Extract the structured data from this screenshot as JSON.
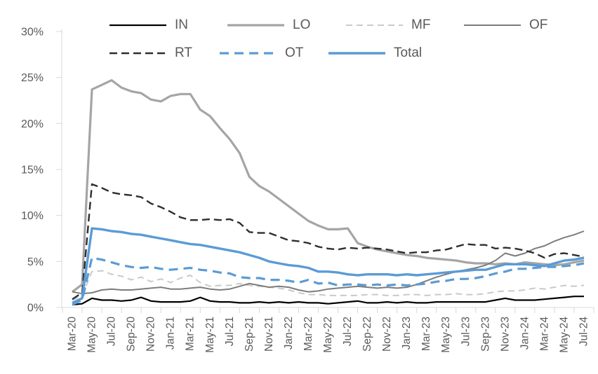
{
  "chart_data": {
    "type": "line",
    "title": "",
    "xlabel": "",
    "ylabel": "",
    "x_categories": [
      "Mar-20",
      "Apr-20",
      "May-20",
      "Jun-20",
      "Jul-20",
      "Aug-20",
      "Sep-20",
      "Oct-20",
      "Nov-20",
      "Dec-20",
      "Jan-21",
      "Feb-21",
      "Mar-21",
      "Apr-21",
      "May-21",
      "Jun-21",
      "Jul-21",
      "Aug-21",
      "Sep-21",
      "Oct-21",
      "Nov-21",
      "Dec-21",
      "Jan-22",
      "Feb-22",
      "Mar-22",
      "Apr-22",
      "May-22",
      "Jun-22",
      "Jul-22",
      "Aug-22",
      "Sep-22",
      "Oct-22",
      "Nov-22",
      "Dec-22",
      "Jan-23",
      "Feb-23",
      "Mar-23",
      "Apr-23",
      "May-23",
      "Jun-23",
      "Jul-23",
      "Aug-23",
      "Sep-23",
      "Oct-23",
      "Nov-23",
      "Dec-23",
      "Jan-24",
      "Feb-24",
      "Mar-24",
      "Apr-24",
      "May-24",
      "Jun-24",
      "Jul-24"
    ],
    "x_labels_shown_every_n_months": 2,
    "y_axis": {
      "min": 0,
      "max": 30,
      "step": 5,
      "format": "percent",
      "tick_labels": [
        "0%",
        "5%",
        "10%",
        "15%",
        "20%",
        "25%",
        "30%"
      ]
    },
    "grid": "off",
    "legend_position": "top",
    "legend_rows": [
      [
        "IN",
        "LO",
        "MF",
        "OF"
      ],
      [
        "RT",
        "OT",
        "Total"
      ]
    ],
    "colors": {
      "axis_line": "#D9D9D9",
      "tick_text": "#595959",
      "legend_text": "#595959",
      "background": "#FFFFFF",
      "accent_blue": "#5B9BD5"
    },
    "series": [
      {
        "name": "IN",
        "color": "#000000",
        "style": "solid",
        "width": 2.2,
        "dash": "",
        "values": [
          0.3,
          0.4,
          1.0,
          0.8,
          0.8,
          0.7,
          0.8,
          1.1,
          0.7,
          0.6,
          0.6,
          0.6,
          0.7,
          1.1,
          0.7,
          0.6,
          0.6,
          0.5,
          0.5,
          0.6,
          0.5,
          0.6,
          0.5,
          0.6,
          0.5,
          0.5,
          0.4,
          0.5,
          0.6,
          0.7,
          0.5,
          0.5,
          0.6,
          0.5,
          0.6,
          0.5,
          0.5,
          0.6,
          0.6,
          0.6,
          0.6,
          0.6,
          0.6,
          0.8,
          1.0,
          0.8,
          0.8,
          0.8,
          0.9,
          1.0,
          1.1,
          1.2,
          1.2
        ]
      },
      {
        "name": "LO",
        "color": "#A5A5A5",
        "style": "solid",
        "width": 3.2,
        "dash": "",
        "values": [
          1.7,
          2.5,
          23.7,
          24.2,
          24.7,
          23.9,
          23.5,
          23.3,
          22.6,
          22.4,
          23.0,
          23.2,
          23.2,
          21.5,
          20.8,
          19.5,
          18.3,
          16.8,
          14.2,
          13.2,
          12.6,
          11.8,
          11.0,
          10.2,
          9.4,
          8.9,
          8.5,
          8.5,
          8.6,
          7.0,
          6.6,
          6.3,
          6.1,
          5.9,
          5.7,
          5.6,
          5.4,
          5.3,
          5.2,
          5.1,
          4.9,
          4.8,
          4.8,
          4.7,
          4.8,
          4.7,
          4.9,
          4.8,
          4.7,
          4.6,
          4.7,
          4.9,
          5.1
        ]
      },
      {
        "name": "MF",
        "color": "#C9C9C9",
        "style": "dashed",
        "width": 2.0,
        "dash": "9 6",
        "values": [
          0.8,
          1.3,
          3.9,
          4.0,
          3.6,
          3.4,
          3.0,
          3.3,
          2.8,
          3.1,
          2.7,
          3.2,
          3.5,
          2.7,
          2.3,
          2.4,
          2.4,
          2.6,
          2.4,
          2.3,
          2.2,
          2.1,
          1.9,
          1.6,
          1.4,
          1.4,
          1.3,
          1.3,
          1.3,
          1.3,
          1.4,
          1.4,
          1.3,
          1.3,
          1.4,
          1.4,
          1.3,
          1.4,
          1.4,
          1.5,
          1.4,
          1.4,
          1.5,
          1.7,
          1.8,
          1.8,
          1.9,
          2.1,
          2.0,
          2.2,
          2.4,
          2.3,
          2.4
        ]
      },
      {
        "name": "OF",
        "color": "#7C7C7C",
        "style": "solid",
        "width": 2.0,
        "dash": "",
        "values": [
          1.7,
          1.5,
          1.6,
          1.9,
          2.0,
          1.9,
          1.9,
          2.0,
          2.1,
          2.2,
          2.0,
          2.0,
          2.1,
          2.2,
          2.0,
          1.9,
          2.0,
          2.3,
          2.6,
          2.4,
          2.2,
          2.3,
          2.2,
          1.9,
          1.7,
          1.8,
          2.0,
          2.1,
          2.2,
          2.3,
          2.2,
          2.1,
          2.2,
          2.1,
          2.2,
          2.5,
          2.9,
          3.3,
          3.6,
          3.9,
          4.1,
          4.3,
          4.6,
          5.1,
          5.9,
          5.6,
          5.9,
          6.4,
          6.7,
          7.2,
          7.6,
          7.9,
          8.3
        ]
      },
      {
        "name": "RT",
        "color": "#2E2E2E",
        "style": "dashed",
        "width": 2.4,
        "dash": "11 6",
        "values": [
          0.9,
          1.6,
          13.4,
          13.0,
          12.5,
          12.3,
          12.2,
          12.0,
          11.3,
          10.9,
          10.4,
          9.8,
          9.5,
          9.5,
          9.6,
          9.5,
          9.6,
          9.2,
          8.2,
          8.1,
          8.1,
          7.7,
          7.3,
          7.2,
          7.0,
          6.6,
          6.4,
          6.3,
          6.5,
          6.4,
          6.5,
          6.4,
          6.3,
          6.1,
          5.9,
          6.0,
          6.0,
          6.2,
          6.3,
          6.6,
          6.9,
          6.8,
          6.8,
          6.4,
          6.5,
          6.4,
          6.2,
          5.9,
          5.4,
          5.8,
          5.9,
          5.7,
          5.5
        ]
      },
      {
        "name": "OT",
        "color": "#5B9BD5",
        "style": "dashed",
        "width": 3.2,
        "dash": "13 8",
        "values": [
          0.3,
          0.8,
          5.4,
          5.2,
          4.9,
          4.6,
          4.4,
          4.3,
          4.4,
          4.2,
          4.1,
          4.2,
          4.3,
          4.1,
          4.0,
          3.8,
          3.7,
          3.3,
          3.2,
          3.2,
          3.0,
          3.0,
          2.9,
          2.7,
          3.0,
          2.6,
          2.7,
          2.4,
          2.5,
          2.5,
          2.4,
          2.5,
          2.4,
          2.5,
          2.4,
          2.5,
          2.6,
          2.8,
          2.9,
          3.1,
          3.1,
          3.2,
          3.4,
          3.7,
          3.9,
          4.2,
          4.2,
          4.3,
          4.4,
          4.4,
          4.5,
          4.6,
          4.8
        ]
      },
      {
        "name": "Total",
        "color": "#5B9BD5",
        "style": "solid",
        "width": 3.4,
        "dash": "",
        "values": [
          0.5,
          1.0,
          8.6,
          8.5,
          8.3,
          8.2,
          8.0,
          7.9,
          7.7,
          7.5,
          7.3,
          7.1,
          6.9,
          6.8,
          6.6,
          6.4,
          6.2,
          6.0,
          5.7,
          5.4,
          5.0,
          4.8,
          4.6,
          4.5,
          4.3,
          3.9,
          3.9,
          3.8,
          3.6,
          3.5,
          3.6,
          3.6,
          3.6,
          3.5,
          3.6,
          3.5,
          3.6,
          3.7,
          3.8,
          3.9,
          4.0,
          4.1,
          4.1,
          4.4,
          4.7,
          4.7,
          4.7,
          4.6,
          4.5,
          4.8,
          5.1,
          5.2,
          5.4
        ]
      }
    ]
  }
}
